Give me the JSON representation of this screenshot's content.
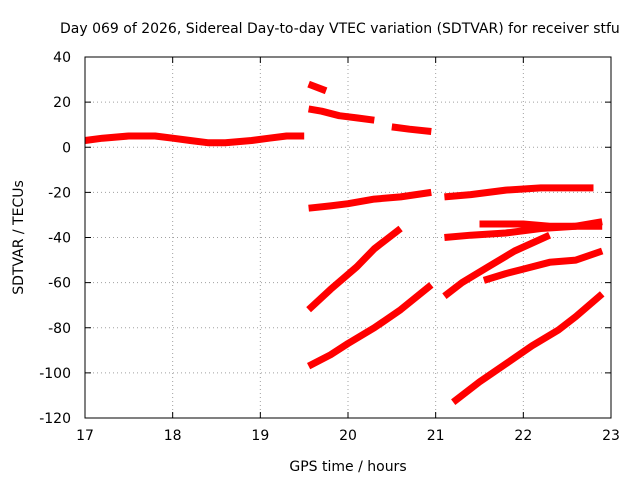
{
  "chart_data": {
    "type": "line",
    "title": "Day 069 of 2026, Sidereal Day-to-day VTEC variation (SDTVAR) for receiver stfu",
    "xlabel": "GPS time / hours",
    "ylabel": "SDTVAR / TECUs",
    "xlim": [
      17,
      23
    ],
    "ylim": [
      -120,
      40
    ],
    "xticks": [
      17,
      18,
      19,
      20,
      21,
      22,
      23
    ],
    "yticks": [
      -120,
      -100,
      -80,
      -60,
      -40,
      -20,
      0,
      20,
      40
    ],
    "grid": true,
    "color": "#ff0000",
    "series": [
      {
        "x": [
          17.0,
          17.2,
          17.5,
          17.8,
          18.0,
          18.2,
          18.4,
          18.6,
          18.9,
          19.1,
          19.3,
          19.5
        ],
        "y": [
          3,
          4,
          5,
          5,
          4,
          3,
          2,
          2,
          3,
          4,
          5,
          5
        ]
      },
      {
        "x": [
          19.55,
          19.75
        ],
        "y": [
          28,
          25
        ]
      },
      {
        "x": [
          19.55,
          19.7,
          19.9,
          20.1,
          20.3
        ],
        "y": [
          17,
          16,
          14,
          13,
          12
        ]
      },
      {
        "x": [
          20.5,
          20.7,
          20.95
        ],
        "y": [
          9,
          8,
          7
        ]
      },
      {
        "x": [
          19.55,
          19.8,
          20.0,
          20.3,
          20.6,
          20.95
        ],
        "y": [
          -27,
          -26,
          -25,
          -23,
          -22,
          -20
        ]
      },
      {
        "x": [
          21.1,
          21.4,
          21.8,
          22.2,
          22.5,
          22.8
        ],
        "y": [
          -22,
          -21,
          -19,
          -18,
          -18,
          -18
        ]
      },
      {
        "x": [
          19.55,
          19.8,
          20.1,
          20.3,
          20.6
        ],
        "y": [
          -72,
          -63,
          -53,
          -45,
          -36
        ]
      },
      {
        "x": [
          21.1,
          21.4,
          21.8,
          22.2,
          22.6,
          22.9
        ],
        "y": [
          -40,
          -39,
          -38,
          -36,
          -35,
          -33
        ]
      },
      {
        "x": [
          21.5,
          21.7,
          22.0,
          22.3,
          22.6,
          22.9
        ],
        "y": [
          -34,
          -34,
          -34,
          -35,
          -35,
          -35
        ]
      },
      {
        "x": [
          21.1,
          21.3,
          21.6,
          21.9,
          22.3
        ],
        "y": [
          -66,
          -60,
          -53,
          -46,
          -39
        ]
      },
      {
        "x": [
          21.55,
          21.8,
          22.0,
          22.3,
          22.6,
          22.9
        ],
        "y": [
          -59,
          -56,
          -54,
          -51,
          -50,
          -46
        ]
      },
      {
        "x": [
          19.55,
          19.8,
          20.0,
          20.3,
          20.6,
          20.95
        ],
        "y": [
          -97,
          -92,
          -87,
          -80,
          -72,
          -61
        ]
      },
      {
        "x": [
          21.2,
          21.5,
          21.8,
          22.1,
          22.4,
          22.6,
          22.9
        ],
        "y": [
          -113,
          -104,
          -96,
          -88,
          -81,
          -75,
          -65
        ]
      }
    ]
  }
}
